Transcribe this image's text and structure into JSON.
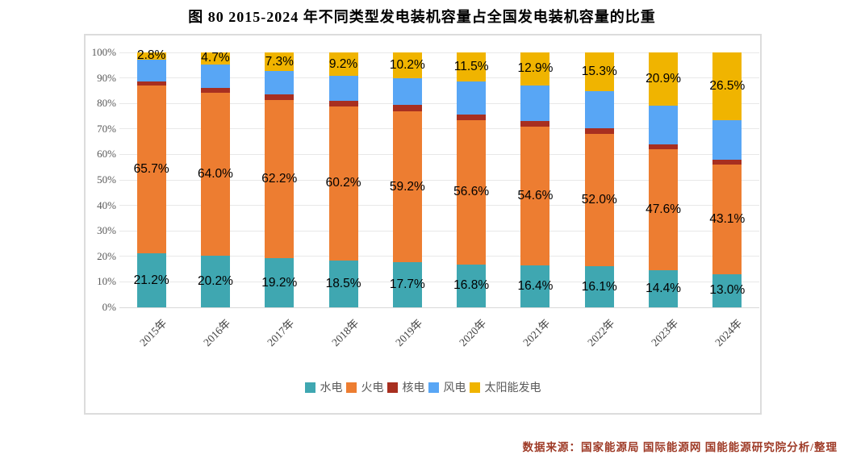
{
  "page": {
    "title": "图 80 2015-2024 年不同类型发电装机容量占全国发电装机容量的比重",
    "source_note": "数据来源：国家能源局 国际能源网 国能能源研究院分析/整理"
  },
  "chart_data": {
    "type": "bar",
    "stacked": true,
    "title": "图 80 2015-2024 年不同类型发电装机容量占全国发电装机容量的比重",
    "xlabel": "",
    "ylabel": "",
    "ylim": [
      0,
      100
    ],
    "grid": true,
    "legend_position": "bottom",
    "y_tick_labels": [
      "0%",
      "10%",
      "20%",
      "30%",
      "40%",
      "50%",
      "60%",
      "70%",
      "80%",
      "90%",
      "100%"
    ],
    "categories": [
      "2015年",
      "2016年",
      "2017年",
      "2018年",
      "2019年",
      "2020年",
      "2021年",
      "2022年",
      "2023年",
      "2024年"
    ],
    "series": [
      {
        "key": "hydro",
        "name": "水电",
        "color": "#3FA7B1",
        "labeled": true,
        "values": [
          21.2,
          20.2,
          19.2,
          18.5,
          17.7,
          16.8,
          16.4,
          16.1,
          14.4,
          13.0
        ]
      },
      {
        "key": "thermal",
        "name": "火电",
        "color": "#ED7D31",
        "labeled": true,
        "values": [
          65.7,
          64.0,
          62.2,
          60.2,
          59.2,
          56.6,
          54.6,
          52.0,
          47.6,
          43.1
        ]
      },
      {
        "key": "nuclear",
        "name": "核电",
        "color": "#A82F20",
        "labeled": false,
        "values": [
          1.8,
          2.0,
          2.0,
          2.3,
          2.4,
          2.3,
          2.2,
          2.2,
          1.9,
          1.8
        ]
      },
      {
        "key": "wind",
        "name": "风电",
        "color": "#58A6F5",
        "labeled": false,
        "values": [
          8.5,
          9.1,
          9.3,
          9.8,
          10.5,
          12.8,
          13.9,
          14.4,
          15.2,
          15.6
        ]
      },
      {
        "key": "solar",
        "name": "太阳能发电",
        "color": "#F0B400",
        "labeled": true,
        "values": [
          2.8,
          4.7,
          7.3,
          9.2,
          10.2,
          11.5,
          12.9,
          15.3,
          20.9,
          26.5
        ]
      }
    ]
  }
}
